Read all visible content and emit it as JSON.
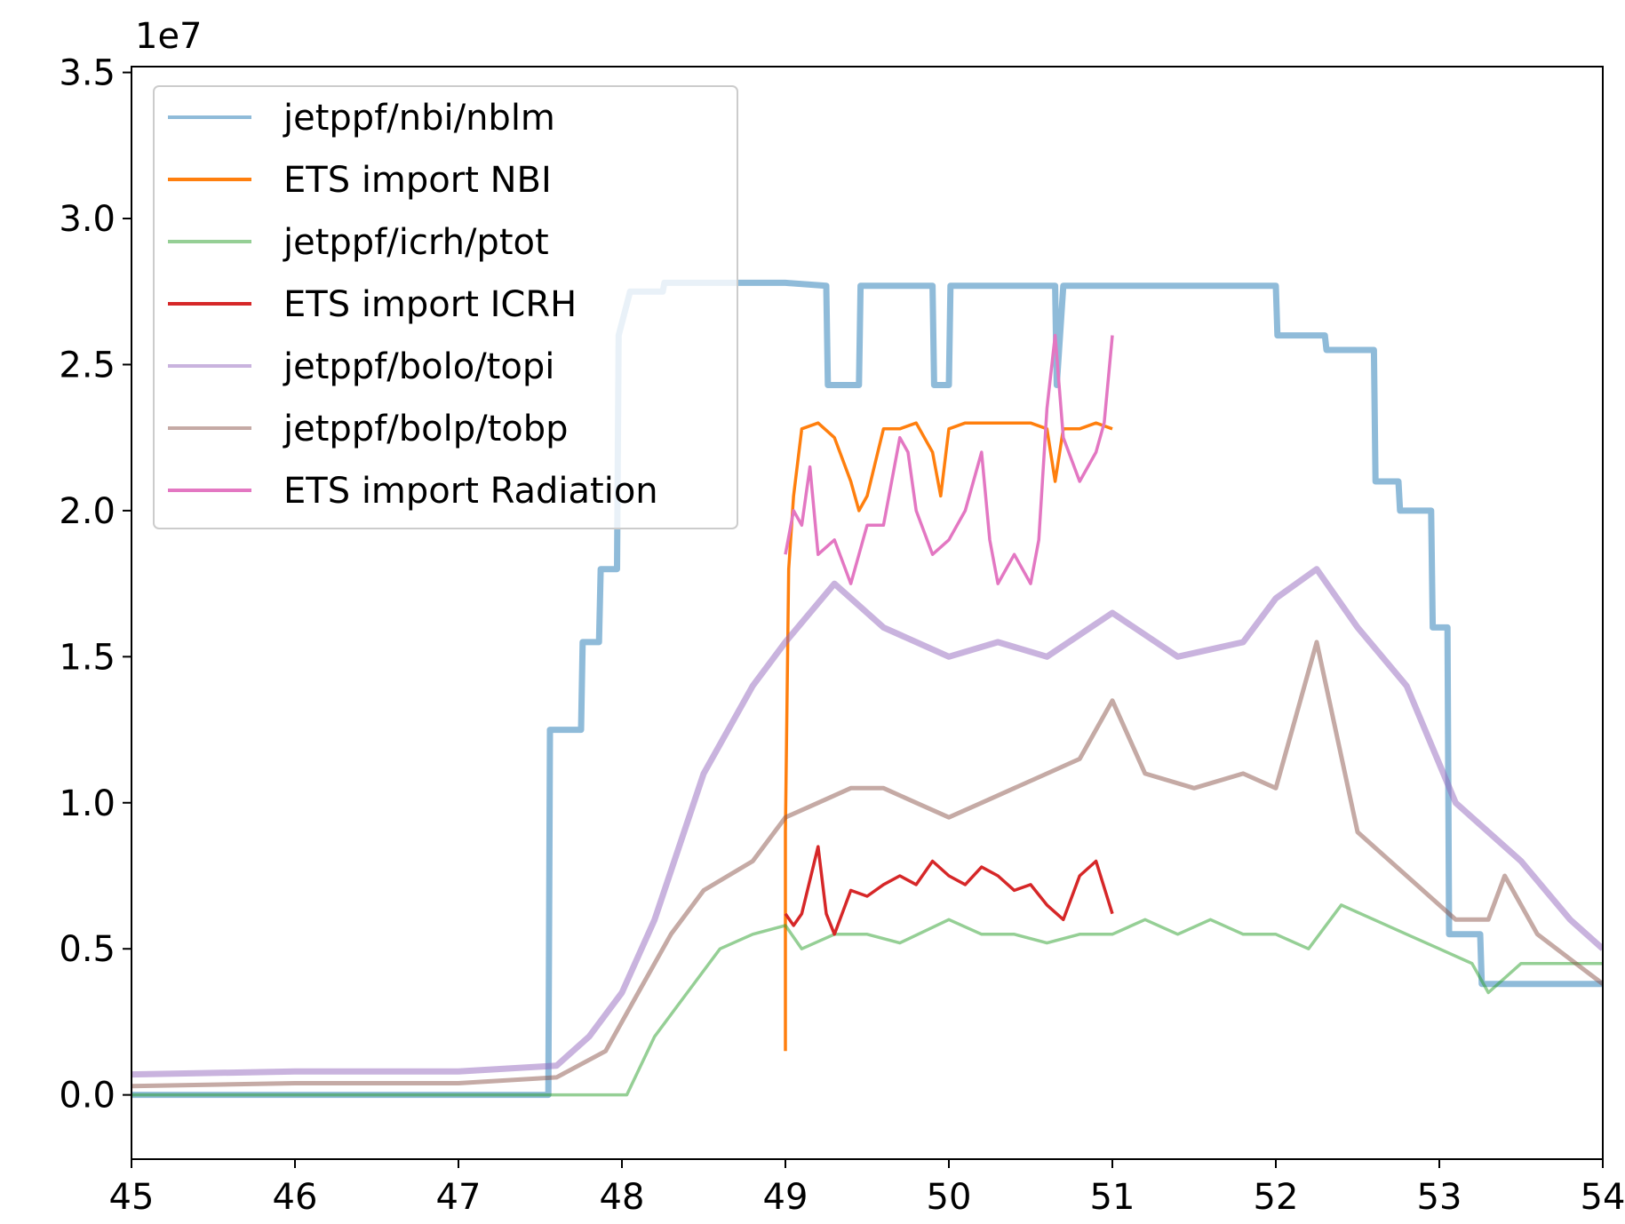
{
  "chart_data": {
    "type": "line",
    "title": "",
    "xlabel": "",
    "ylabel": "",
    "y_offset_text": "1e7",
    "xlim": [
      45,
      54
    ],
    "ylim": [
      -0.22,
      3.52
    ],
    "x_ticks": [
      45,
      46,
      47,
      48,
      49,
      50,
      51,
      52,
      53,
      54
    ],
    "x_tick_labels": [
      "45",
      "46",
      "47",
      "48",
      "49",
      "50",
      "51",
      "52",
      "53",
      "54"
    ],
    "y_ticks": [
      0.0,
      0.5,
      1.0,
      1.5,
      2.0,
      2.5,
      3.0,
      3.5
    ],
    "y_tick_labels": [
      "0.0",
      "0.5",
      "1.0",
      "1.5",
      "2.0",
      "2.5",
      "3.0",
      "3.5"
    ],
    "grid": false,
    "legend_position": "upper-left",
    "series": [
      {
        "name": "jetppf/nbi/nblm",
        "color": "#1f77b4",
        "opacity": 0.5,
        "width": 7,
        "points": [
          [
            45.0,
            0.0
          ],
          [
            47.55,
            0.0
          ],
          [
            47.56,
            1.25
          ],
          [
            47.75,
            1.25
          ],
          [
            47.76,
            1.55
          ],
          [
            47.86,
            1.55
          ],
          [
            47.87,
            1.8
          ],
          [
            47.97,
            1.8
          ],
          [
            47.98,
            2.6
          ],
          [
            48.05,
            2.75
          ],
          [
            48.25,
            2.75
          ],
          [
            48.26,
            2.78
          ],
          [
            49.0,
            2.78
          ],
          [
            49.25,
            2.77
          ],
          [
            49.26,
            2.43
          ],
          [
            49.45,
            2.43
          ],
          [
            49.46,
            2.77
          ],
          [
            49.9,
            2.77
          ],
          [
            49.91,
            2.43
          ],
          [
            50.0,
            2.43
          ],
          [
            50.01,
            2.77
          ],
          [
            50.65,
            2.77
          ],
          [
            50.66,
            2.43
          ],
          [
            50.7,
            2.77
          ],
          [
            52.0,
            2.77
          ],
          [
            52.01,
            2.6
          ],
          [
            52.3,
            2.6
          ],
          [
            52.31,
            2.55
          ],
          [
            52.6,
            2.55
          ],
          [
            52.61,
            2.1
          ],
          [
            52.75,
            2.1
          ],
          [
            52.76,
            2.0
          ],
          [
            52.95,
            2.0
          ],
          [
            52.96,
            1.6
          ],
          [
            53.05,
            1.6
          ],
          [
            53.06,
            0.55
          ],
          [
            53.25,
            0.55
          ],
          [
            53.26,
            0.38
          ],
          [
            54.0,
            0.38
          ]
        ]
      },
      {
        "name": "ETS import NBI",
        "color": "#ff7f0e",
        "opacity": 1.0,
        "width": 3.5,
        "points": [
          [
            49.0,
            0.15
          ],
          [
            49.0,
            0.9
          ],
          [
            49.02,
            1.8
          ],
          [
            49.05,
            2.05
          ],
          [
            49.1,
            2.28
          ],
          [
            49.2,
            2.3
          ],
          [
            49.3,
            2.25
          ],
          [
            49.4,
            2.1
          ],
          [
            49.45,
            2.0
          ],
          [
            49.5,
            2.05
          ],
          [
            49.6,
            2.28
          ],
          [
            49.7,
            2.28
          ],
          [
            49.8,
            2.3
          ],
          [
            49.9,
            2.2
          ],
          [
            49.95,
            2.05
          ],
          [
            50.0,
            2.28
          ],
          [
            50.1,
            2.3
          ],
          [
            50.3,
            2.3
          ],
          [
            50.5,
            2.3
          ],
          [
            50.6,
            2.28
          ],
          [
            50.65,
            2.1
          ],
          [
            50.7,
            2.28
          ],
          [
            50.8,
            2.28
          ],
          [
            50.9,
            2.3
          ],
          [
            51.0,
            2.28
          ]
        ]
      },
      {
        "name": "jetppf/icrh/ptot",
        "color": "#2ca02c",
        "opacity": 0.5,
        "width": 3.5,
        "points": [
          [
            45.0,
            0.0
          ],
          [
            48.03,
            0.0
          ],
          [
            48.2,
            0.2
          ],
          [
            48.4,
            0.35
          ],
          [
            48.6,
            0.5
          ],
          [
            48.8,
            0.55
          ],
          [
            49.0,
            0.58
          ],
          [
            49.1,
            0.5
          ],
          [
            49.3,
            0.55
          ],
          [
            49.5,
            0.55
          ],
          [
            49.7,
            0.52
          ],
          [
            50.0,
            0.6
          ],
          [
            50.2,
            0.55
          ],
          [
            50.4,
            0.55
          ],
          [
            50.6,
            0.52
          ],
          [
            50.8,
            0.55
          ],
          [
            51.0,
            0.55
          ],
          [
            51.2,
            0.6
          ],
          [
            51.4,
            0.55
          ],
          [
            51.6,
            0.6
          ],
          [
            51.8,
            0.55
          ],
          [
            52.0,
            0.55
          ],
          [
            52.2,
            0.5
          ],
          [
            52.4,
            0.65
          ],
          [
            52.6,
            0.6
          ],
          [
            52.8,
            0.55
          ],
          [
            53.0,
            0.5
          ],
          [
            53.2,
            0.45
          ],
          [
            53.3,
            0.35
          ],
          [
            53.5,
            0.45
          ],
          [
            54.0,
            0.45
          ]
        ]
      },
      {
        "name": "ETS import ICRH",
        "color": "#d62728",
        "opacity": 1.0,
        "width": 3.5,
        "points": [
          [
            49.0,
            0.62
          ],
          [
            49.05,
            0.58
          ],
          [
            49.1,
            0.62
          ],
          [
            49.2,
            0.85
          ],
          [
            49.25,
            0.62
          ],
          [
            49.3,
            0.55
          ],
          [
            49.4,
            0.7
          ],
          [
            49.5,
            0.68
          ],
          [
            49.6,
            0.72
          ],
          [
            49.7,
            0.75
          ],
          [
            49.8,
            0.72
          ],
          [
            49.9,
            0.8
          ],
          [
            50.0,
            0.75
          ],
          [
            50.1,
            0.72
          ],
          [
            50.2,
            0.78
          ],
          [
            50.3,
            0.75
          ],
          [
            50.4,
            0.7
          ],
          [
            50.5,
            0.72
          ],
          [
            50.6,
            0.65
          ],
          [
            50.7,
            0.6
          ],
          [
            50.8,
            0.75
          ],
          [
            50.9,
            0.8
          ],
          [
            51.0,
            0.62
          ]
        ]
      },
      {
        "name": "jetppf/bolo/topi",
        "color": "#9467bd",
        "opacity": 0.5,
        "width": 7,
        "points": [
          [
            45.0,
            0.07
          ],
          [
            46.0,
            0.08
          ],
          [
            47.0,
            0.08
          ],
          [
            47.6,
            0.1
          ],
          [
            47.8,
            0.2
          ],
          [
            48.0,
            0.35
          ],
          [
            48.2,
            0.6
          ],
          [
            48.5,
            1.1
          ],
          [
            48.8,
            1.4
          ],
          [
            49.0,
            1.55
          ],
          [
            49.3,
            1.75
          ],
          [
            49.6,
            1.6
          ],
          [
            50.0,
            1.5
          ],
          [
            50.3,
            1.55
          ],
          [
            50.6,
            1.5
          ],
          [
            51.0,
            1.65
          ],
          [
            51.4,
            1.5
          ],
          [
            51.8,
            1.55
          ],
          [
            52.0,
            1.7
          ],
          [
            52.25,
            1.8
          ],
          [
            52.5,
            1.6
          ],
          [
            52.8,
            1.4
          ],
          [
            53.1,
            1.0
          ],
          [
            53.5,
            0.8
          ],
          [
            53.8,
            0.6
          ],
          [
            54.0,
            0.5
          ]
        ]
      },
      {
        "name": "jetppf/bolp/tobp",
        "color": "#8c564b",
        "opacity": 0.5,
        "width": 5,
        "points": [
          [
            45.0,
            0.03
          ],
          [
            46.0,
            0.04
          ],
          [
            47.0,
            0.04
          ],
          [
            47.6,
            0.06
          ],
          [
            47.9,
            0.15
          ],
          [
            48.1,
            0.35
          ],
          [
            48.3,
            0.55
          ],
          [
            48.5,
            0.7
          ],
          [
            48.8,
            0.8
          ],
          [
            49.0,
            0.95
          ],
          [
            49.2,
            1.0
          ],
          [
            49.4,
            1.05
          ],
          [
            49.6,
            1.05
          ],
          [
            49.8,
            1.0
          ],
          [
            50.0,
            0.95
          ],
          [
            50.2,
            1.0
          ],
          [
            50.4,
            1.05
          ],
          [
            50.6,
            1.1
          ],
          [
            50.8,
            1.15
          ],
          [
            51.0,
            1.35
          ],
          [
            51.2,
            1.1
          ],
          [
            51.5,
            1.05
          ],
          [
            51.8,
            1.1
          ],
          [
            52.0,
            1.05
          ],
          [
            52.25,
            1.55
          ],
          [
            52.5,
            0.9
          ],
          [
            52.8,
            0.75
          ],
          [
            53.1,
            0.6
          ],
          [
            53.3,
            0.6
          ],
          [
            53.4,
            0.75
          ],
          [
            53.6,
            0.55
          ],
          [
            54.0,
            0.38
          ]
        ]
      },
      {
        "name": "ETS import Radiation",
        "color": "#e377c2",
        "opacity": 1.0,
        "width": 3.5,
        "points": [
          [
            49.0,
            1.85
          ],
          [
            49.05,
            2.0
          ],
          [
            49.1,
            1.95
          ],
          [
            49.15,
            2.15
          ],
          [
            49.2,
            1.85
          ],
          [
            49.3,
            1.9
          ],
          [
            49.4,
            1.75
          ],
          [
            49.5,
            1.95
          ],
          [
            49.6,
            1.95
          ],
          [
            49.7,
            2.25
          ],
          [
            49.75,
            2.2
          ],
          [
            49.8,
            2.0
          ],
          [
            49.9,
            1.85
          ],
          [
            50.0,
            1.9
          ],
          [
            50.1,
            2.0
          ],
          [
            50.2,
            2.2
          ],
          [
            50.25,
            1.9
          ],
          [
            50.3,
            1.75
          ],
          [
            50.4,
            1.85
          ],
          [
            50.5,
            1.75
          ],
          [
            50.55,
            1.9
          ],
          [
            50.6,
            2.35
          ],
          [
            50.65,
            2.6
          ],
          [
            50.7,
            2.25
          ],
          [
            50.8,
            2.1
          ],
          [
            50.9,
            2.2
          ],
          [
            50.95,
            2.3
          ],
          [
            51.0,
            2.6
          ]
        ]
      }
    ]
  }
}
